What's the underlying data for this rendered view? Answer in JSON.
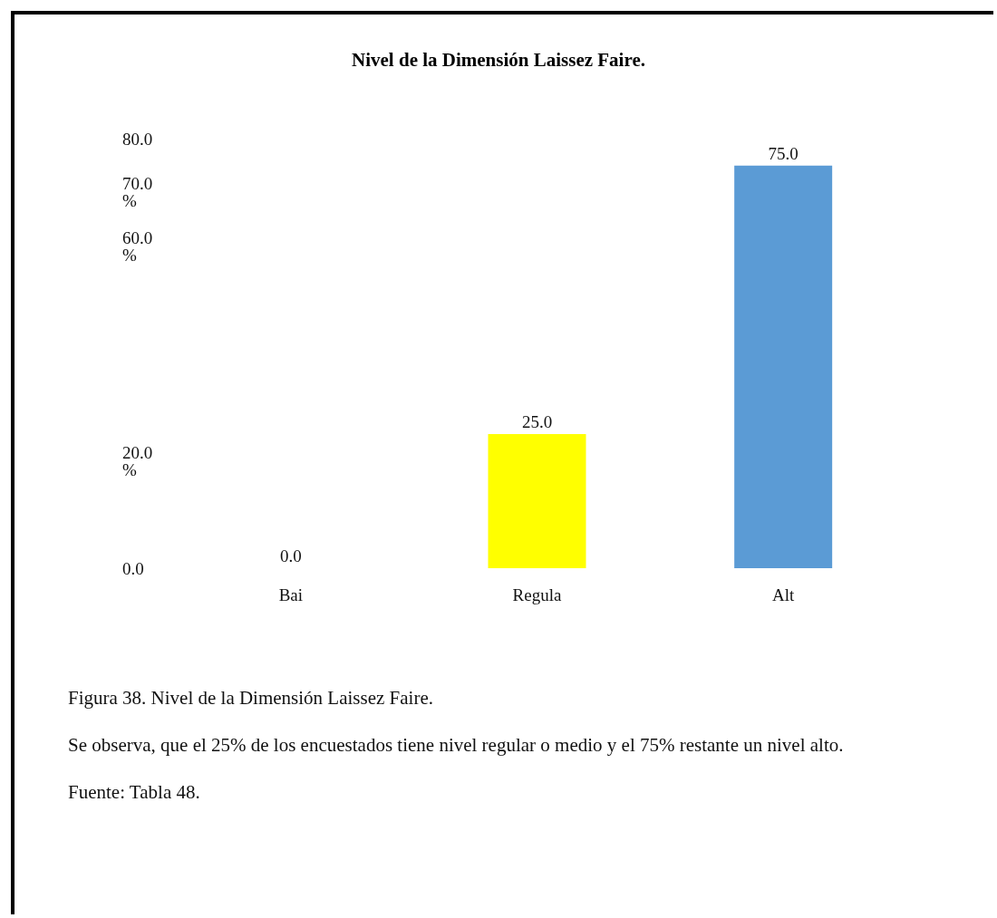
{
  "chart_data": {
    "type": "bar",
    "title": "Nivel de la Dimensión Laissez Faire.",
    "categories": [
      "Bai",
      "Regula",
      "Alt"
    ],
    "values": [
      0,
      25,
      75
    ],
    "colors": [
      "#5b9bd5",
      "#ffff00",
      "#5b9bd5"
    ],
    "value_labels": [
      "0.0",
      "25.0",
      "75.0"
    ],
    "ylim": [
      0,
      80
    ],
    "yticks": [
      {
        "value": 80,
        "label": "80.0"
      },
      {
        "value": 70,
        "label": "70.0\n%"
      },
      {
        "value": 60,
        "label": "60.0\n%"
      },
      {
        "value": 20,
        "label": "20.0\n%"
      },
      {
        "value": 0,
        "label": "0.0"
      }
    ],
    "grid": false,
    "annotations": [
      "Figura 38. Nivel de la Dimensión Laissez Faire.",
      "Se observa, que el 25% de los encuestados tiene nivel regular o medio y el 75% restante un nivel alto.",
      "Fuente: Tabla 48."
    ]
  }
}
